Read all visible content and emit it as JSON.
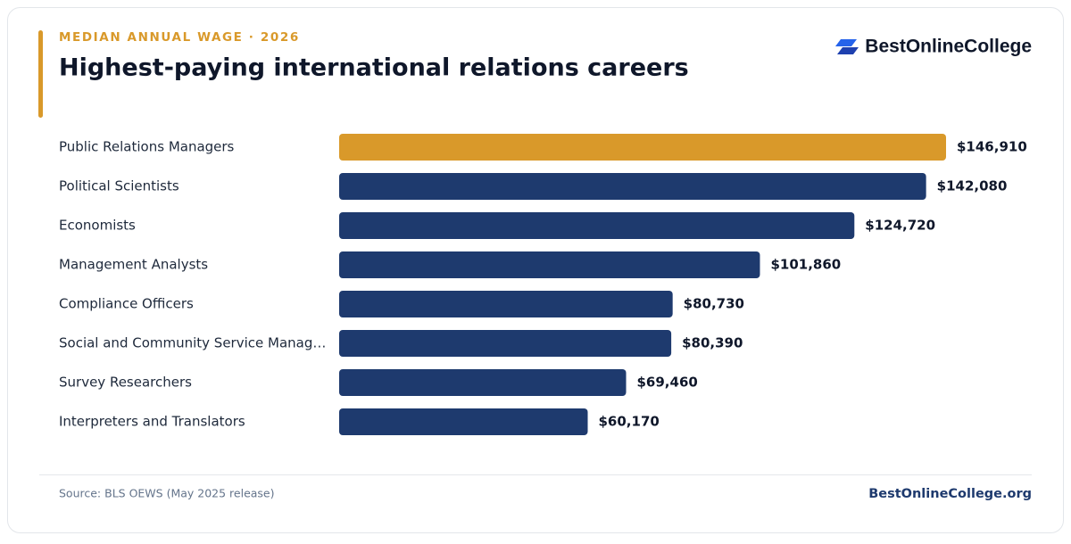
{
  "chart_data": {
    "type": "bar",
    "orientation": "horizontal",
    "kicker": "MEDIAN ANNUAL WAGE · 2026",
    "title": "Highest-paying international relations careers",
    "brand": "BestOnlineCollege",
    "categories": [
      "Public Relations Managers",
      "Political Scientists",
      "Economists",
      "Management Analysts",
      "Compliance Officers",
      "Social and Community Service Manag…",
      "Survey Researchers",
      "Interpreters and Translators"
    ],
    "values": [
      146910,
      142080,
      124720,
      101860,
      80730,
      80390,
      69460,
      60170
    ],
    "value_labels": [
      "$146,910",
      "$142,080",
      "$124,720",
      "$101,860",
      "$80,730",
      "$80,390",
      "$69,460",
      "$60,170"
    ],
    "colors": [
      "#d9992a",
      "#1e3a6e",
      "#1e3a6e",
      "#1e3a6e",
      "#1e3a6e",
      "#1e3a6e",
      "#1e3a6e",
      "#1e3a6e"
    ],
    "source": "Source: BLS OEWS (May 2025 release)",
    "footer_brand": "BestOnlineCollege.org"
  }
}
